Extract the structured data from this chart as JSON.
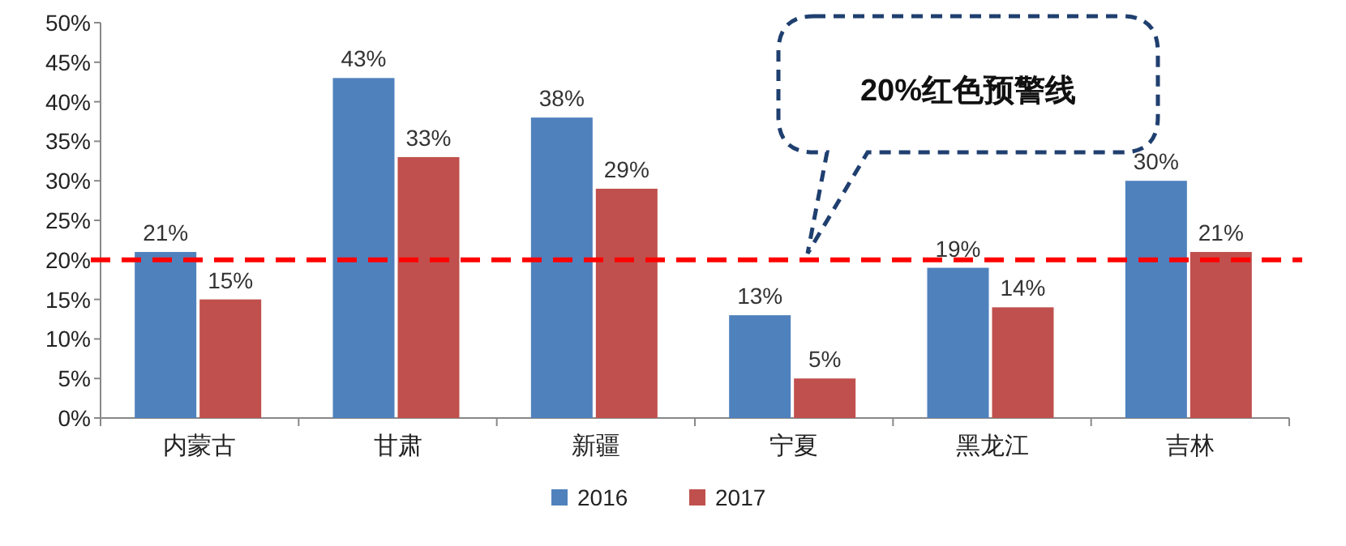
{
  "chart_data": {
    "type": "bar",
    "categories": [
      "内蒙古",
      "甘肃",
      "新疆",
      "宁夏",
      "黑龙江",
      "吉林"
    ],
    "series": [
      {
        "name": "2016",
        "color": "#4f81bd",
        "values": [
          21,
          43,
          38,
          13,
          19,
          30
        ],
        "value_labels": [
          "21%",
          "43%",
          "38%",
          "13%",
          "19%",
          "30%"
        ]
      },
      {
        "name": "2017",
        "color": "#c0504d",
        "values": [
          15,
          33,
          29,
          5,
          14,
          21
        ],
        "value_labels": [
          "15%",
          "33%",
          "29%",
          "5%",
          "14%",
          "21%"
        ]
      }
    ],
    "ylim": [
      0,
      50
    ],
    "yticks": [
      {
        "value": 0,
        "label": "0%"
      },
      {
        "value": 5,
        "label": "5%"
      },
      {
        "value": 10,
        "label": "10%"
      },
      {
        "value": 15,
        "label": "15%"
      },
      {
        "value": 20,
        "label": "20%"
      },
      {
        "value": 25,
        "label": "25%"
      },
      {
        "value": 30,
        "label": "30%"
      },
      {
        "value": 35,
        "label": "35%"
      },
      {
        "value": 40,
        "label": "40%"
      },
      {
        "value": 45,
        "label": "45%"
      },
      {
        "value": 50,
        "label": "50%"
      }
    ],
    "ref_lines": [
      {
        "axis": "y",
        "value": 20,
        "color": "#ff0000",
        "line_style": "dashed"
      }
    ],
    "annotations": [
      "20%红色预警线"
    ],
    "grid": false,
    "legend": "bottom"
  }
}
